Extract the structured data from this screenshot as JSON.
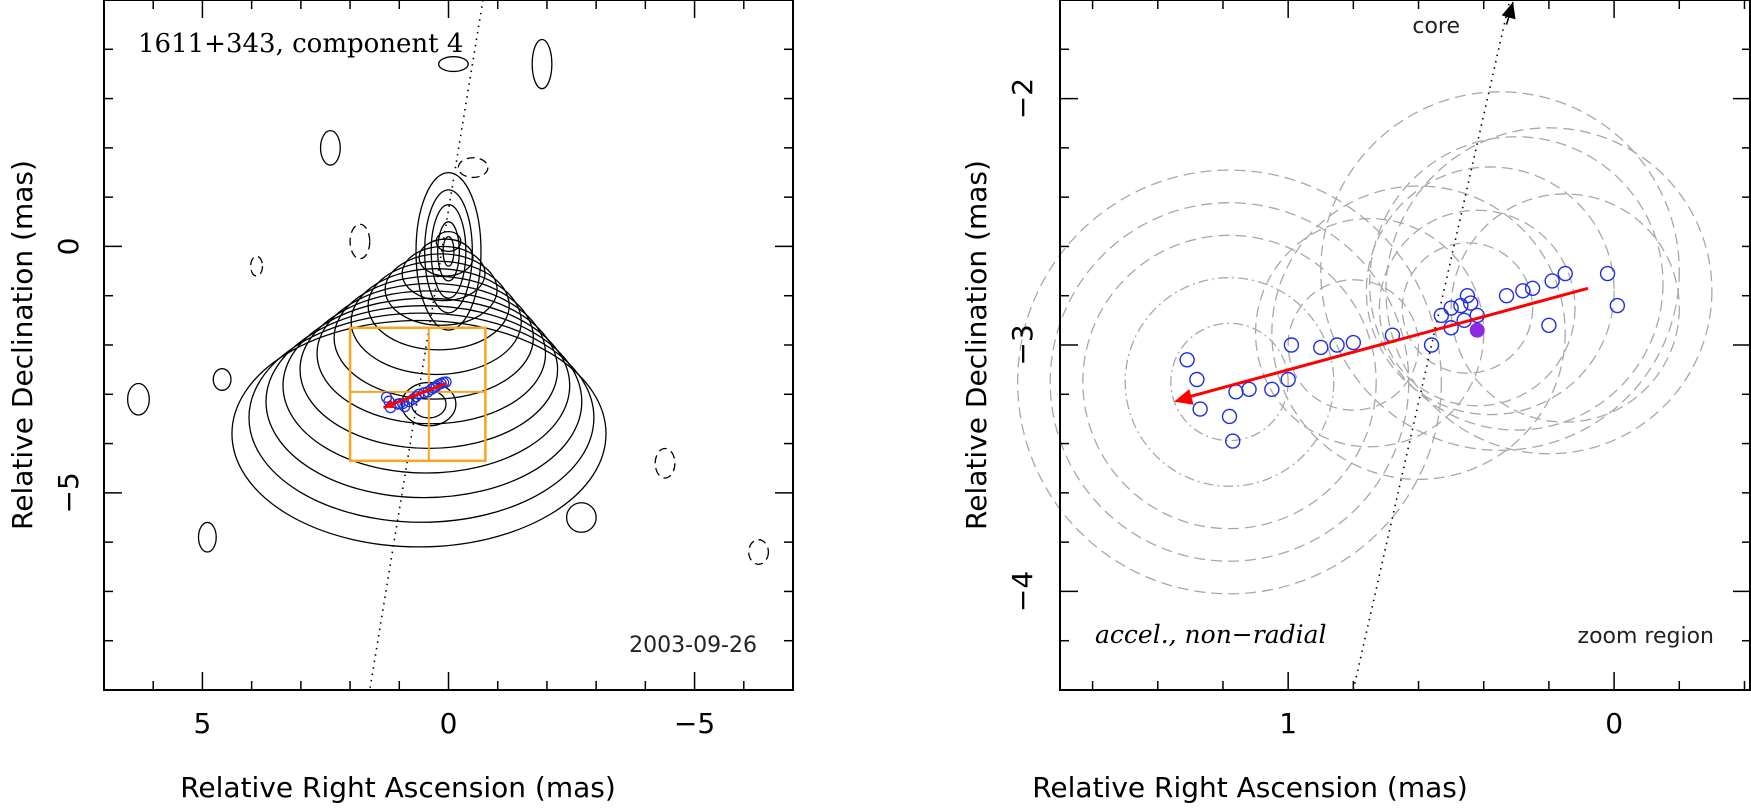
{
  "chart_data": [
    {
      "type": "scatter",
      "panel": "left",
      "title": "1611+343, component 4",
      "date_label": "2003-09-26",
      "xlabel": "Relative Right Ascension (mas)",
      "ylabel": "Relative Declination (mas)",
      "xlim": [
        7,
        -7
      ],
      "ylim": [
        -9,
        5
      ],
      "xticks": [
        5,
        0,
        -5
      ],
      "xtick_labels": [
        "5",
        "0",
        "−5"
      ],
      "yticks": [
        0,
        -5
      ],
      "ytick_labels": [
        "0",
        "−5"
      ],
      "core_position": [
        0,
        0
      ],
      "ridge_line": [
        [
          -0.7,
          5
        ],
        [
          1.6,
          -9
        ]
      ],
      "zoom_box": {
        "x": [
          -0.75,
          2.0
        ],
        "y": [
          -4.35,
          -1.65
        ]
      },
      "zoom_box_cross": {
        "x": 0.4,
        "y": -2.95
      },
      "contour_levels": 13,
      "component_positions": [
        [
          1.26,
          -3.06
        ],
        [
          1.21,
          -3.14
        ],
        [
          1.18,
          -3.27
        ],
        [
          1.03,
          -3.2
        ],
        [
          0.99,
          -3.19
        ],
        [
          0.93,
          -3.19
        ],
        [
          0.89,
          -3.25
        ],
        [
          0.8,
          -3.15
        ],
        [
          0.72,
          -3.1
        ],
        [
          0.66,
          -3.05
        ],
        [
          0.6,
          -3.0
        ],
        [
          0.5,
          -2.97
        ],
        [
          0.42,
          -2.95
        ],
        [
          0.35,
          -2.9
        ],
        [
          0.3,
          -2.87
        ],
        [
          0.25,
          -2.84
        ],
        [
          0.2,
          -2.8
        ],
        [
          0.15,
          -2.78
        ],
        [
          0.1,
          -2.76
        ],
        [
          0.05,
          -2.75
        ]
      ],
      "motion_vector": {
        "from": [
          0.05,
          -2.78
        ],
        "to": [
          1.32,
          -3.27
        ]
      }
    },
    {
      "type": "scatter",
      "panel": "right",
      "title": "",
      "labels": {
        "core": "core",
        "model": "accel., non−radial",
        "region": "zoom region"
      },
      "xlabel": "Relative Right Ascension (mas)",
      "ylabel": "Relative Declination (mas)",
      "xlim": [
        1.7,
        -0.42
      ],
      "ylim": [
        -4.4,
        -1.6
      ],
      "xticks": [
        1,
        0
      ],
      "xtick_labels": [
        "1",
        "0"
      ],
      "yticks": [
        -2,
        -3,
        -4
      ],
      "ytick_labels": [
        "−2",
        "−3",
        "−4"
      ],
      "ridge_line": [
        [
          0.8,
          -4.4
        ],
        [
          0.32,
          -1.6
        ]
      ],
      "core_direction_arrow": {
        "from": [
          0.33,
          -1.7
        ],
        "to": [
          0.31,
          -1.6
        ]
      },
      "component_positions": [
        [
          1.31,
          -3.06
        ],
        [
          1.28,
          -3.14
        ],
        [
          1.27,
          -3.26
        ],
        [
          1.18,
          -3.29
        ],
        [
          1.17,
          -3.39
        ],
        [
          1.16,
          -3.19
        ],
        [
          1.12,
          -3.18
        ],
        [
          1.05,
          -3.18
        ],
        [
          0.99,
          -3.0
        ],
        [
          1.0,
          -3.14
        ],
        [
          0.9,
          -3.01
        ],
        [
          0.85,
          -3.0
        ],
        [
          0.8,
          -2.99
        ],
        [
          0.68,
          -2.96
        ],
        [
          0.56,
          -3.0
        ],
        [
          0.53,
          -2.88
        ],
        [
          0.5,
          -2.85
        ],
        [
          0.47,
          -2.84
        ],
        [
          0.45,
          -2.8
        ],
        [
          0.44,
          -2.83
        ],
        [
          0.46,
          -2.9
        ],
        [
          0.5,
          -2.93
        ],
        [
          0.42,
          -2.88
        ],
        [
          0.33,
          -2.8
        ],
        [
          0.28,
          -2.78
        ],
        [
          0.25,
          -2.77
        ],
        [
          0.19,
          -2.74
        ],
        [
          0.15,
          -2.71
        ],
        [
          0.02,
          -2.71
        ],
        [
          0.2,
          -2.92
        ],
        [
          -0.01,
          -2.84
        ]
      ],
      "mean_position": [
        0.42,
        -2.94
      ],
      "motion_vector": {
        "from": [
          0.08,
          -2.77
        ],
        "to": [
          1.35,
          -3.23
        ]
      },
      "gaussian_components": [
        {
          "center": [
            1.18,
            -3.15
          ],
          "radius": 0.18,
          "style": "dashdot"
        },
        {
          "center": [
            1.18,
            -3.15
          ],
          "radius": 0.32,
          "style": "dashdot"
        },
        {
          "center": [
            1.18,
            -3.15
          ],
          "radius": 0.45,
          "style": "dashed"
        },
        {
          "center": [
            1.18,
            -3.15
          ],
          "radius": 0.55,
          "style": "dashed"
        },
        {
          "center": [
            1.18,
            -3.15
          ],
          "radius": 0.65,
          "style": "dashed"
        },
        {
          "center": [
            0.8,
            -3.0
          ],
          "radius": 0.2,
          "style": "dashed"
        },
        {
          "center": [
            0.75,
            -2.95
          ],
          "radius": 0.35,
          "style": "dashed"
        },
        {
          "center": [
            0.6,
            -2.95
          ],
          "radius": 0.45,
          "style": "dashed"
        },
        {
          "center": [
            0.45,
            -2.85
          ],
          "radius": 0.2,
          "style": "dashed"
        },
        {
          "center": [
            0.42,
            -2.85
          ],
          "radius": 0.3,
          "style": "dashed"
        },
        {
          "center": [
            0.38,
            -2.78
          ],
          "radius": 0.38,
          "style": "dashed"
        },
        {
          "center": [
            0.3,
            -2.75
          ],
          "radius": 0.45,
          "style": "dashed"
        },
        {
          "center": [
            0.2,
            -2.78
          ],
          "radius": 0.5,
          "style": "dashed"
        },
        {
          "center": [
            0.15,
            -2.85
          ],
          "radius": 0.35,
          "style": "dashed"
        },
        {
          "center": [
            0.35,
            -2.7
          ],
          "radius": 0.55,
          "style": "dashed"
        }
      ]
    }
  ],
  "colors": {
    "axes": "#000000",
    "contour": "#000000",
    "component_marker": "#1f2ee0",
    "motion_vector": "#ff0000",
    "zoom_box": "#f5a623",
    "gaussian_circle": "#a8a8a8",
    "mean_marker": "#8b2be2"
  }
}
